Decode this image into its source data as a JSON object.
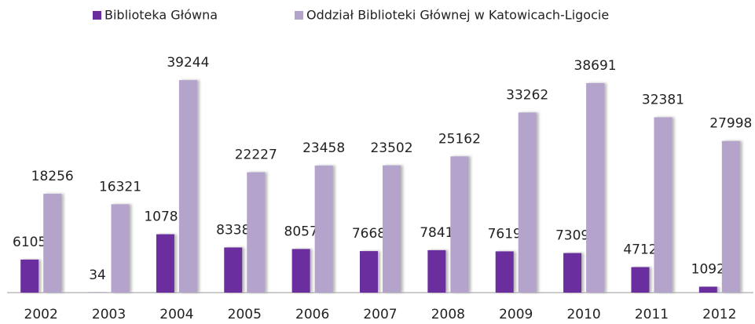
{
  "chart_data": {
    "type": "bar",
    "categories": [
      "2002",
      "2003",
      "2004",
      "2005",
      "2006",
      "2007",
      "2008",
      "2009",
      "2010",
      "2011",
      "2012"
    ],
    "series": [
      {
        "name": "Biblioteka Główna",
        "color": "#6b2d9e",
        "values": [
          6105,
          34,
          10781,
          8338,
          8057,
          7668,
          7841,
          7619,
          7309,
          4712,
          1092
        ]
      },
      {
        "name": "Oddział Biblioteki Głównej w Katowicach-Ligocie",
        "color": "#b4a4cc",
        "values": [
          18256,
          16321,
          39244,
          22227,
          23458,
          23502,
          25162,
          33262,
          38691,
          32381,
          27998
        ]
      }
    ],
    "ylim": [
      0,
      41000
    ],
    "legend": "top"
  }
}
